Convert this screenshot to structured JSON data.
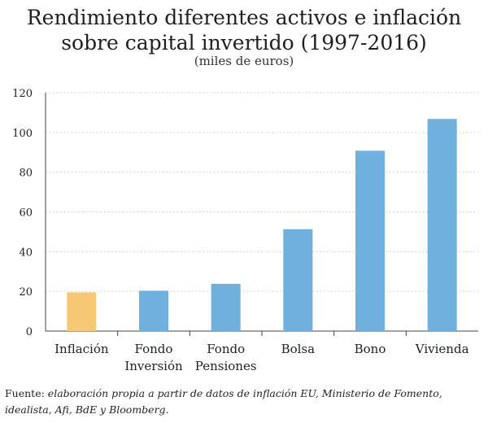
{
  "chart_data": {
    "type": "bar",
    "title_lines": [
      "Rendimiento diferentes activos e inflación",
      "sobre capital invertido (1997-2016)"
    ],
    "subtitle": "(miles de euros)",
    "categories": [
      [
        "Inflación"
      ],
      [
        "Fondo",
        "Inversión"
      ],
      [
        "Fondo",
        "Pensiones"
      ],
      [
        "Bolsa"
      ],
      [
        "Bono"
      ],
      [
        "Vivienda"
      ]
    ],
    "values": [
      19.5,
      20.3,
      23.8,
      51.3,
      90.8,
      106.8
    ],
    "bar_colors": [
      "#f7c873",
      "#6fb0df",
      "#6fb0df",
      "#6fb0df",
      "#6fb0df",
      "#6fb0df"
    ],
    "ylim": [
      0,
      120
    ],
    "yticks": [
      0,
      20,
      40,
      60,
      80,
      100,
      120
    ],
    "grid": true,
    "legend": "none",
    "xlabel": "",
    "ylabel": ""
  },
  "source": {
    "label": "Fuente:",
    "text": "elaboración propia a partir de datos de inflación EU, Ministerio de Fomento, idealista, Afi, BdE y Bloomberg."
  }
}
